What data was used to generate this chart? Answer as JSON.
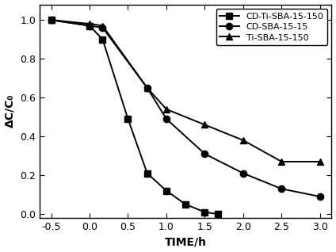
{
  "series": [
    {
      "label": "CD-Ti-SBA-15-150",
      "marker": "s",
      "x": [
        -0.5,
        0.0,
        0.17,
        0.5,
        0.75,
        1.0,
        1.25,
        1.5,
        1.67
      ],
      "y": [
        1.0,
        0.97,
        0.9,
        0.49,
        0.21,
        0.12,
        0.05,
        0.01,
        0.0
      ]
    },
    {
      "label": "CD-SBA-15-15",
      "marker": "o",
      "x": [
        -0.5,
        0.0,
        0.17,
        0.75,
        1.0,
        1.5,
        2.0,
        2.5,
        3.0
      ],
      "y": [
        1.0,
        0.97,
        0.96,
        0.65,
        0.49,
        0.31,
        0.21,
        0.13,
        0.09
      ]
    },
    {
      "label": "Ti-SBA-15-150",
      "marker": "^",
      "x": [
        -0.5,
        0.0,
        0.17,
        0.75,
        1.0,
        1.5,
        2.0,
        2.5,
        3.0
      ],
      "y": [
        1.0,
        0.98,
        0.97,
        0.65,
        0.54,
        0.46,
        0.38,
        0.27,
        0.27
      ]
    }
  ],
  "xlabel": "TIME/h",
  "ylabel": "ΔC/C₀",
  "xlim": [
    -0.65,
    3.15
  ],
  "ylim": [
    -0.02,
    1.08
  ],
  "xticks": [
    -0.5,
    0.0,
    0.5,
    1.0,
    1.5,
    2.0,
    2.5,
    3.0
  ],
  "yticks": [
    0.0,
    0.2,
    0.4,
    0.6,
    0.8,
    1.0
  ],
  "line_color": "#000000",
  "bg_color": "#ffffff",
  "fontsize_label": 10,
  "fontsize_tick": 9,
  "fontsize_legend": 8,
  "linewidth": 1.4,
  "markersize": 6
}
